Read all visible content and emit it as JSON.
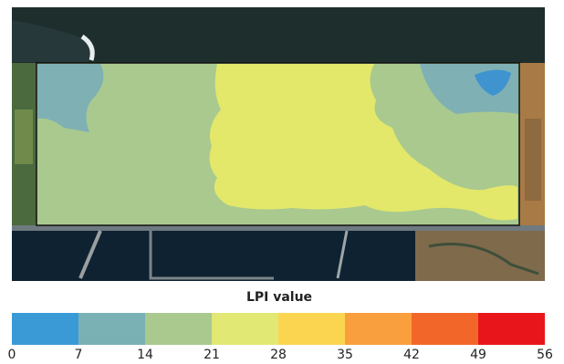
{
  "legend": {
    "title": "LPI value",
    "ticks": [
      0,
      7,
      14,
      21,
      28,
      35,
      42,
      49,
      56
    ],
    "colors": [
      "#3a9ad6",
      "#79b1b4",
      "#a9c98f",
      "#e1e873",
      "#fcd550",
      "#f99f3d",
      "#f2662a",
      "#e8161b"
    ]
  }
}
